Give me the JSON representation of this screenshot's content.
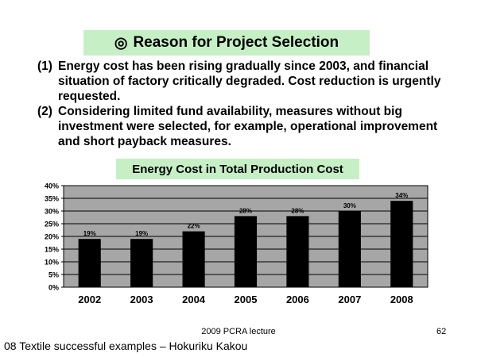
{
  "slide": {
    "title_mark": "◎",
    "title": "Reason for Project Selection",
    "points": [
      {
        "num": "(1)",
        "text": "Energy cost has been rising gradually since 2003, and financial situation of factory critically degraded. Cost reduction is urgently requested."
      },
      {
        "num": "(2)",
        "text": "Considering limited fund availability, measures without big investment were selected, for example, operational improvement and short payback measures."
      }
    ],
    "footer_center": "2009 PCRA lecture",
    "footer_page": "62",
    "footer_left": "08 Textile successful examples – Hokuriku Kakou"
  },
  "chart_data": {
    "type": "bar",
    "title": "Energy Cost in Total Production Cost",
    "categories": [
      "2002",
      "2003",
      "2004",
      "2005",
      "2006",
      "2007",
      "2008"
    ],
    "values": [
      19,
      19,
      22,
      28,
      28,
      30,
      34
    ],
    "data_labels": [
      "19%",
      "19%",
      "22%",
      "28%",
      "28%",
      "30%",
      "34%"
    ],
    "yticks": [
      "0%",
      "5%",
      "10%",
      "15%",
      "20%",
      "25%",
      "30%",
      "35%",
      "40%"
    ],
    "ylim": [
      0,
      40
    ],
    "grid": true,
    "legend": "none",
    "colors": {
      "bar": "#000000",
      "plot_bg": "#a6a6a6",
      "grid": "#000000"
    }
  }
}
